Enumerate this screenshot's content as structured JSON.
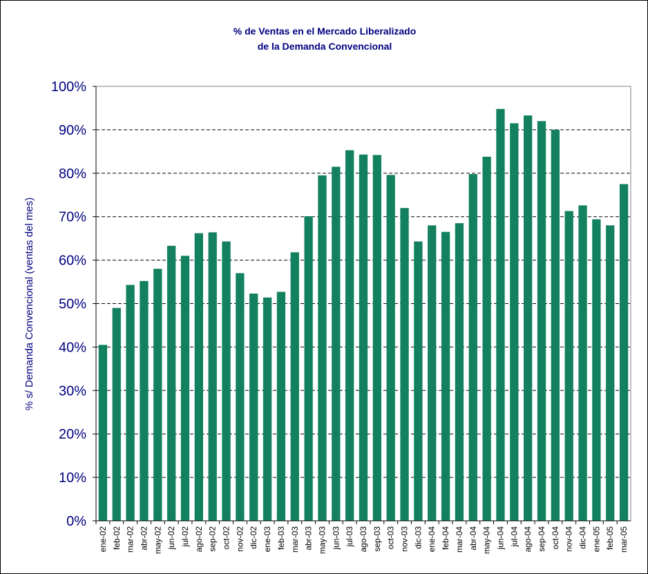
{
  "chart_data": {
    "type": "bar",
    "title": [
      "% de Ventas en el Mercado Liberalizado",
      "de la Demanda Convencional"
    ],
    "y_label": "% s/ Demanda Convencional (ventas del mes)",
    "categories": [
      "ene-02",
      "feb-02",
      "mar-02",
      "abr-02",
      "may-02",
      "jun-02",
      "jul-02",
      "ago-02",
      "sep-02",
      "oct-02",
      "nov-02",
      "dic-02",
      "ene-03",
      "feb-03",
      "mar-03",
      "abr-03",
      "may-03",
      "jun-03",
      "jul-03",
      "ago-03",
      "sep-03",
      "oct-03",
      "nov-03",
      "dic-03",
      "ene-04",
      "feb-04",
      "mar-04",
      "abr-04",
      "may-04",
      "jun-04",
      "jul-04",
      "ago-04",
      "sep-04",
      "oct-04",
      "nov-04",
      "dic-04",
      "ene-05",
      "feb-05",
      "mar-05"
    ],
    "values": [
      40.5,
      49,
      54.3,
      55.2,
      58,
      63.3,
      61,
      66.2,
      66.4,
      64.3,
      57,
      52.3,
      51.4,
      52.7,
      61.8,
      70.1,
      79.5,
      81.5,
      85.3,
      84.3,
      84.2,
      79.6,
      72,
      64.3,
      68,
      66.5,
      68.5,
      79.8,
      83.8,
      94.8,
      91.5,
      93.3,
      92,
      90,
      71.3,
      72.6,
      69.4,
      68,
      77.5
    ],
    "color": "#138060",
    "ylim": [
      0,
      100
    ],
    "yticks": [
      {
        "value": 0,
        "label": "0%"
      },
      {
        "value": 10,
        "label": "10%"
      },
      {
        "value": 20,
        "label": "20%"
      },
      {
        "value": 30,
        "label": "30%"
      },
      {
        "value": 40,
        "label": "40%"
      },
      {
        "value": 50,
        "label": "50%"
      },
      {
        "value": 60,
        "label": "60%"
      },
      {
        "value": 70,
        "label": "70%"
      },
      {
        "value": 80,
        "label": "80%"
      },
      {
        "value": 90,
        "label": "90%"
      },
      {
        "value": 100,
        "label": "100%"
      }
    ],
    "grid": true
  }
}
